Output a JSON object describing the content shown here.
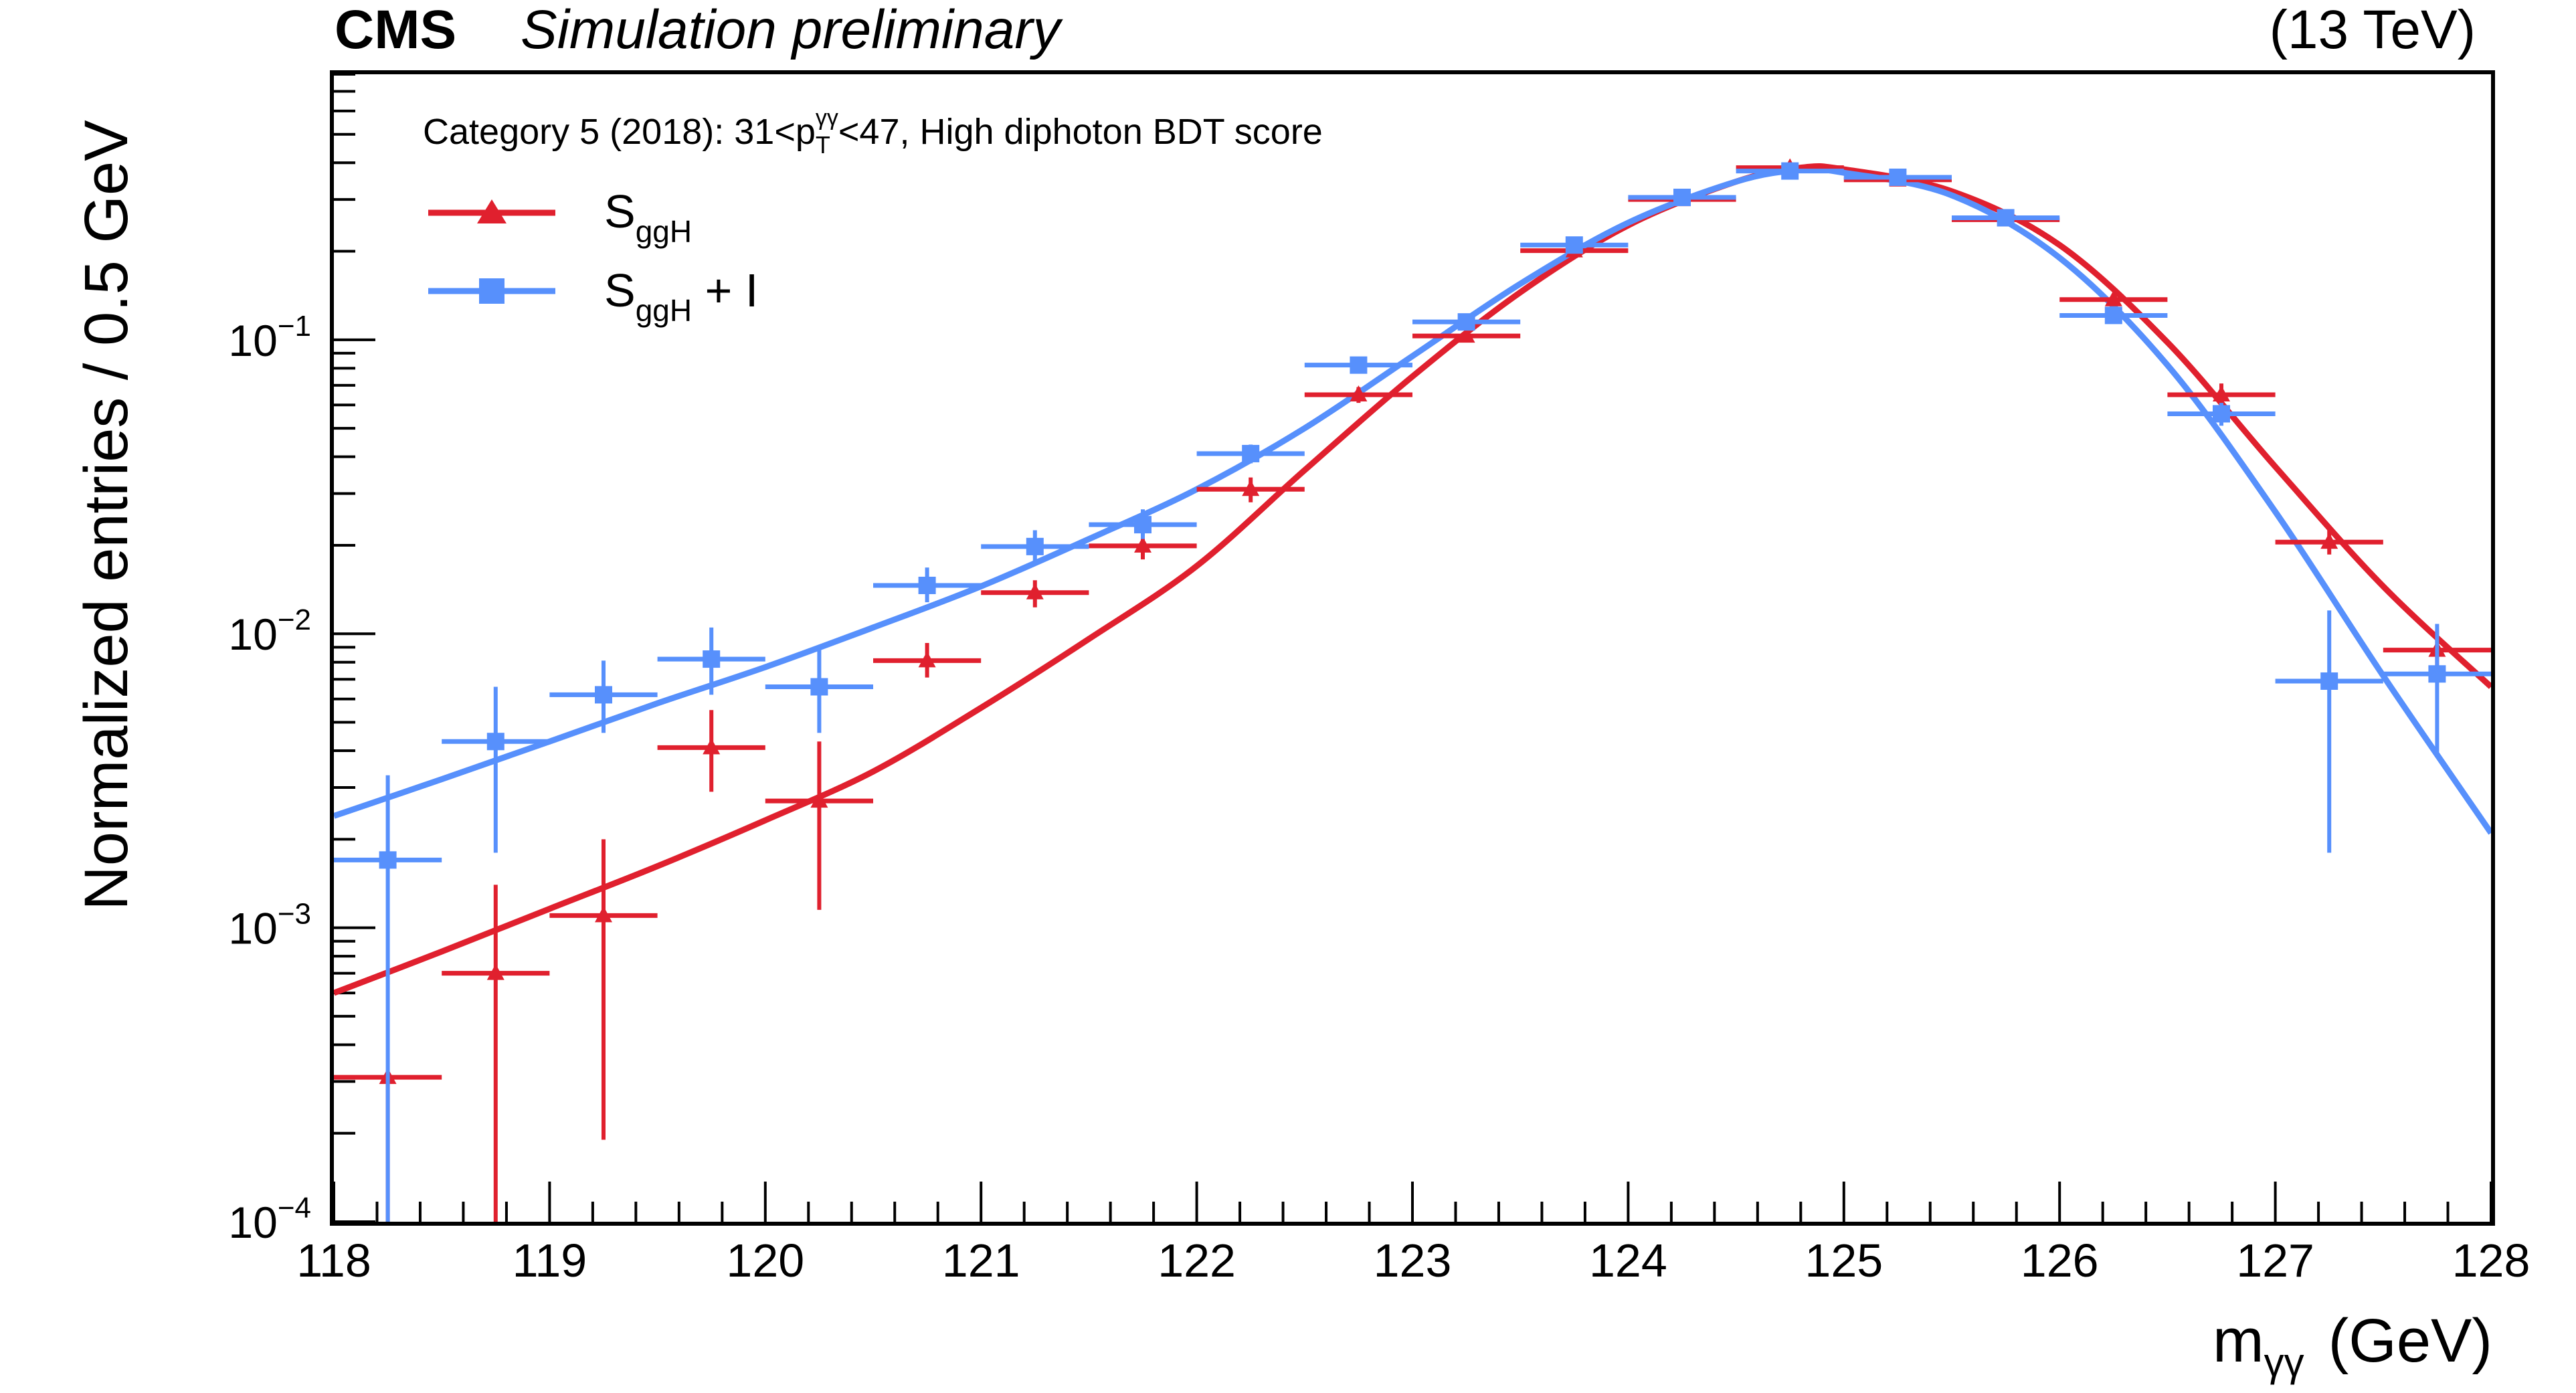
{
  "header": {
    "experiment": "CMS",
    "status": "Simulation preliminary",
    "energy": "(13 TeV)"
  },
  "legend": {
    "category_prefix": "Category 5 (2018): 31<p",
    "category_sub": "T",
    "category_sup": "γγ",
    "category_suffix": "<47, High diphoton BDT score",
    "entries": [
      {
        "base": "S",
        "sub": "ggH",
        "suffix": ""
      },
      {
        "base": "S",
        "sub": "ggH",
        "suffix": " + I"
      }
    ]
  },
  "axes": {
    "ylabel": "Normalized entries / 0.5 GeV",
    "xlabel_base": "m",
    "xlabel_sub": "γγ",
    "xlabel_unit": "(GeV)",
    "xticks": [
      "118",
      "119",
      "120",
      "121",
      "122",
      "123",
      "124",
      "125",
      "126",
      "127",
      "128"
    ],
    "yticks": [
      {
        "base": "10",
        "exp": "−4"
      },
      {
        "base": "10",
        "exp": "−3"
      },
      {
        "base": "10",
        "exp": "−2"
      },
      {
        "base": "10",
        "exp": "−1"
      }
    ]
  },
  "chart_data": {
    "type": "scatter",
    "title": "Category 5 (2018): 31<pT(γγ)<47, High diphoton BDT score",
    "xlabel": "mγγ (GeV)",
    "ylabel": "Normalized entries / 0.5 GeV",
    "xlim": [
      118,
      128
    ],
    "ylim": [
      0.0001,
      0.8
    ],
    "yscale": "log",
    "bin_width": 0.5,
    "grid": false,
    "legend_position": "top-left",
    "series": [
      {
        "name": "SggH",
        "color": "#e0202e",
        "marker": "triangle",
        "points": [
          {
            "x": 118.25,
            "y": 0.00031,
            "lo": 1e-05,
            "hi": 0.00031
          },
          {
            "x": 118.75,
            "y": 0.0007,
            "lo": 9e-05,
            "hi": 0.0014
          },
          {
            "x": 119.25,
            "y": 0.0011,
            "lo": 0.00019,
            "hi": 0.002
          },
          {
            "x": 119.75,
            "y": 0.0041,
            "lo": 0.0029,
            "hi": 0.0055
          },
          {
            "x": 120.25,
            "y": 0.0027,
            "lo": 0.00115,
            "hi": 0.0043
          },
          {
            "x": 120.75,
            "y": 0.0081,
            "lo": 0.0071,
            "hi": 0.0093
          },
          {
            "x": 121.25,
            "y": 0.0138,
            "lo": 0.0123,
            "hi": 0.0152
          },
          {
            "x": 121.75,
            "y": 0.0199,
            "lo": 0.0179,
            "hi": 0.0221
          },
          {
            "x": 122.25,
            "y": 0.031,
            "lo": 0.028,
            "hi": 0.034
          },
          {
            "x": 122.75,
            "y": 0.065,
            "lo": 0.061,
            "hi": 0.069
          },
          {
            "x": 123.25,
            "y": 0.103,
            "lo": 0.099,
            "hi": 0.108
          },
          {
            "x": 123.75,
            "y": 0.201,
            "lo": 0.195,
            "hi": 0.208
          },
          {
            "x": 124.25,
            "y": 0.3,
            "lo": 0.292,
            "hi": 0.308
          },
          {
            "x": 124.75,
            "y": 0.385,
            "lo": 0.375,
            "hi": 0.395
          },
          {
            "x": 125.25,
            "y": 0.35,
            "lo": 0.341,
            "hi": 0.359
          },
          {
            "x": 125.75,
            "y": 0.256,
            "lo": 0.249,
            "hi": 0.264
          },
          {
            "x": 126.25,
            "y": 0.137,
            "lo": 0.131,
            "hi": 0.143
          },
          {
            "x": 126.75,
            "y": 0.065,
            "lo": 0.059,
            "hi": 0.071
          },
          {
            "x": 127.25,
            "y": 0.0205,
            "lo": 0.0186,
            "hi": 0.0225
          },
          {
            "x": 127.75,
            "y": 0.0088,
            "lo": 0.0074,
            "hi": 0.0103
          }
        ]
      },
      {
        "name": "SggH + I",
        "color": "#5790fc",
        "marker": "square",
        "points": [
          {
            "x": 118.25,
            "y": 0.0017,
            "lo": 0.0001,
            "hi": 0.0033
          },
          {
            "x": 118.75,
            "y": 0.0043,
            "lo": 0.0018,
            "hi": 0.0066
          },
          {
            "x": 119.25,
            "y": 0.0062,
            "lo": 0.0046,
            "hi": 0.0081
          },
          {
            "x": 119.75,
            "y": 0.0082,
            "lo": 0.0062,
            "hi": 0.0105
          },
          {
            "x": 120.25,
            "y": 0.0066,
            "lo": 0.0046,
            "hi": 0.0089
          },
          {
            "x": 120.75,
            "y": 0.0146,
            "lo": 0.0128,
            "hi": 0.0168
          },
          {
            "x": 121.25,
            "y": 0.0198,
            "lo": 0.0175,
            "hi": 0.0225
          },
          {
            "x": 121.75,
            "y": 0.0235,
            "lo": 0.021,
            "hi": 0.0265
          },
          {
            "x": 122.25,
            "y": 0.041,
            "lo": 0.038,
            "hi": 0.044
          },
          {
            "x": 122.75,
            "y": 0.082,
            "lo": 0.077,
            "hi": 0.087
          },
          {
            "x": 123.25,
            "y": 0.115,
            "lo": 0.11,
            "hi": 0.12
          },
          {
            "x": 123.75,
            "y": 0.21,
            "lo": 0.203,
            "hi": 0.217
          },
          {
            "x": 124.25,
            "y": 0.305,
            "lo": 0.296,
            "hi": 0.314
          },
          {
            "x": 124.75,
            "y": 0.375,
            "lo": 0.365,
            "hi": 0.386
          },
          {
            "x": 125.25,
            "y": 0.357,
            "lo": 0.347,
            "hi": 0.367
          },
          {
            "x": 125.75,
            "y": 0.26,
            "lo": 0.252,
            "hi": 0.268
          },
          {
            "x": 126.25,
            "y": 0.121,
            "lo": 0.115,
            "hi": 0.127
          },
          {
            "x": 126.75,
            "y": 0.056,
            "lo": 0.051,
            "hi": 0.061
          },
          {
            "x": 127.25,
            "y": 0.0069,
            "lo": 0.0018,
            "hi": 0.012
          },
          {
            "x": 127.75,
            "y": 0.0073,
            "lo": 0.0038,
            "hi": 0.0108
          }
        ]
      }
    ],
    "fits": [
      {
        "name": "SggH fit",
        "color": "#e0202e",
        "points": [
          [
            118,
            0.0006
          ],
          [
            118.5,
            0.00083
          ],
          [
            119,
            0.00116
          ],
          [
            119.5,
            0.00162
          ],
          [
            120,
            0.00232
          ],
          [
            120.5,
            0.0034
          ],
          [
            121,
            0.0056
          ],
          [
            121.5,
            0.0096
          ],
          [
            122,
            0.017
          ],
          [
            122.5,
            0.036
          ],
          [
            123,
            0.075
          ],
          [
            123.5,
            0.145
          ],
          [
            124,
            0.245
          ],
          [
            124.5,
            0.345
          ],
          [
            124.8,
            0.385
          ],
          [
            125,
            0.38
          ],
          [
            125.5,
            0.32
          ],
          [
            126,
            0.21
          ],
          [
            126.5,
            0.098
          ],
          [
            127,
            0.037
          ],
          [
            127.5,
            0.0145
          ],
          [
            128,
            0.0066
          ]
        ]
      },
      {
        "name": "SggH + I fit",
        "color": "#5790fc",
        "points": [
          [
            118,
            0.0024
          ],
          [
            118.5,
            0.0032
          ],
          [
            119,
            0.0043
          ],
          [
            119.5,
            0.0058
          ],
          [
            120,
            0.0077
          ],
          [
            120.5,
            0.0105
          ],
          [
            121,
            0.0145
          ],
          [
            121.5,
            0.021
          ],
          [
            122,
            0.031
          ],
          [
            122.5,
            0.05
          ],
          [
            123,
            0.088
          ],
          [
            123.5,
            0.155
          ],
          [
            124,
            0.25
          ],
          [
            124.5,
            0.345
          ],
          [
            124.8,
            0.378
          ],
          [
            125,
            0.37
          ],
          [
            125.5,
            0.31
          ],
          [
            126,
            0.19
          ],
          [
            126.5,
            0.082
          ],
          [
            127,
            0.026
          ],
          [
            127.5,
            0.0072
          ],
          [
            128,
            0.0021
          ]
        ]
      }
    ]
  }
}
